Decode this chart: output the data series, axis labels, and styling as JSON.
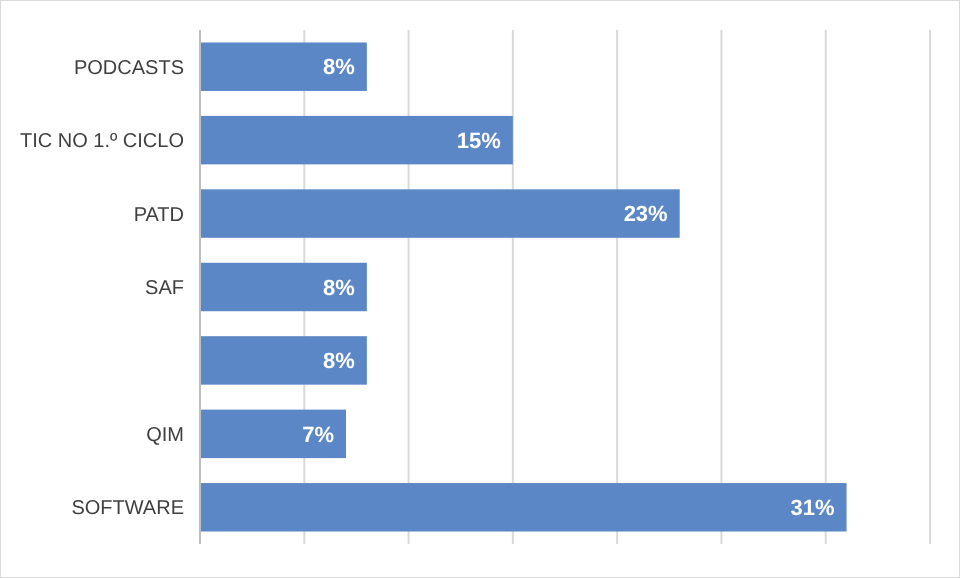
{
  "chart_data": {
    "type": "bar",
    "orientation": "horizontal",
    "categories": [
      "PODCASTS",
      "TIC NO 1.º CICLO",
      "PATD",
      "SAF",
      null,
      "QIM",
      "SOFTWARE"
    ],
    "values": [
      8,
      15,
      23,
      8,
      8,
      7,
      31
    ],
    "value_labels": [
      "8%",
      "15%",
      "23%",
      "8%",
      "8%",
      "7%",
      "31%"
    ],
    "color": "#5b87c6",
    "xlim": [
      0,
      35
    ],
    "xticks": [
      0,
      5,
      10,
      15,
      20,
      25,
      30,
      35
    ],
    "grid": "x",
    "tick_labels": "y"
  }
}
